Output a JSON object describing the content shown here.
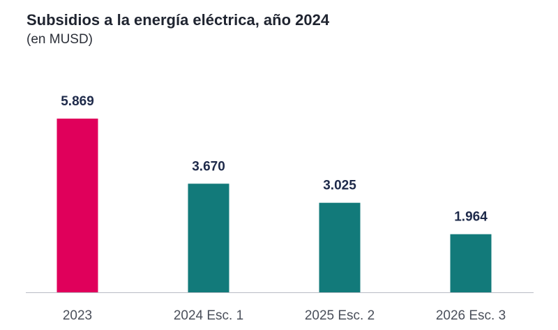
{
  "chart_data": {
    "type": "bar",
    "title": "Subsidios a la energía eléctrica, año 2024",
    "subtitle": "(en MUSD)",
    "categories": [
      "2023",
      "2024 Esc. 1",
      "2025 Esc. 2",
      "2026 Esc. 3"
    ],
    "values": [
      5869,
      3670,
      3025,
      1964
    ],
    "value_labels": [
      "5.869",
      "3.670",
      "3.025",
      "1.964"
    ],
    "bar_colors": [
      "#e0005b",
      "#127a7a",
      "#127a7a",
      "#127a7a"
    ],
    "ylim": [
      0,
      5869
    ],
    "grid": false,
    "legend": "none"
  }
}
